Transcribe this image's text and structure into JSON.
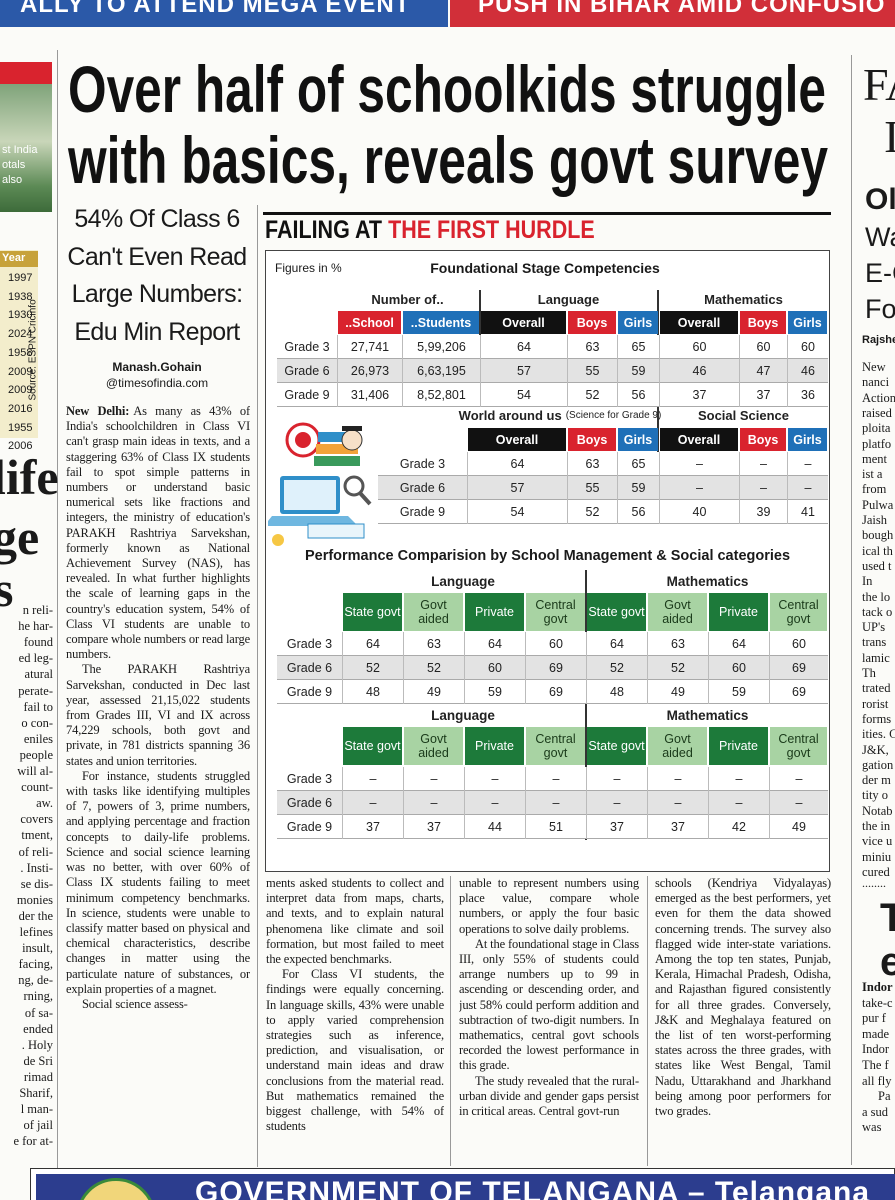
{
  "banner": {
    "left": "ALLY TO ATTEND MEGA EVENT",
    "right": "PUSH IN BIHAR AMID CONFUSIO"
  },
  "left_fragment": {
    "caption_lines": [
      "st India",
      "otals",
      "also"
    ],
    "year_header": "Year",
    "years": [
      "1997",
      "1938",
      "1930",
      "2024",
      "1958",
      "2009",
      "2009",
      "2016",
      "1955",
      "2006"
    ],
    "source": "Source: ESPN Cricinfo",
    "headline_lines": [
      "life",
      "ge",
      "s"
    ],
    "body_lines": [
      "n reli-",
      "he har-",
      "found",
      "ed leg-",
      "atural",
      "perate-",
      "fail to",
      "o con-",
      "eniles",
      "people",
      "will al-",
      "count-",
      "aw.",
      "covers",
      "tment,",
      "of reli-",
      ". Insti-",
      "se dis-",
      "monies",
      "der the",
      "lefines",
      "insult,",
      "facing,",
      "ng, de-",
      "rning,",
      "of sa-",
      "ended",
      ". Holy",
      "de Sri",
      "rimad",
      "Sharif,",
      "l man-",
      "of jail",
      "e for at-"
    ]
  },
  "right_fragment": {
    "headline_lines": [
      "FA",
      "I"
    ],
    "subhead_lines": [
      "Ol",
      "Wa",
      "E-C",
      "Fo"
    ],
    "byline": "Rajshe",
    "body_lines": [
      "New",
      "nanci",
      "Action",
      "raised",
      "ploita",
      "platfo",
      "ment",
      "ist a",
      "from",
      "Pulwa",
      "Jaish",
      "bough",
      "ical th",
      "used t",
      "In",
      "the lo",
      "tack o",
      "UP's",
      "trans",
      "lamic",
      "Th",
      "trated",
      "rorist",
      "forms",
      "ities. C",
      "J&K,",
      "gation",
      "der m",
      "tity o",
      "Notab",
      "the in",
      "vice u",
      "miniu",
      "cured"
    ],
    "divider": "........",
    "lower_headline_lines": [
      "T",
      "e"
    ],
    "lower_body_lines": [
      "Indor",
      "take-c",
      "pur f",
      "made",
      "Indor",
      "The f",
      "all fly",
      "Pa",
      "a sud",
      "was"
    ]
  },
  "article": {
    "headline_lines": [
      "Over half of schoolkids struggle",
      "with basics, reveals govt survey"
    ],
    "subhead_lines": [
      "54% Of Class 6",
      "Can't Even Read",
      "Large Numbers:",
      "Edu Min Report"
    ],
    "byline": {
      "author": "Manash.Gohain",
      "handle": "@timesofindia.com"
    },
    "dateline": "New Delhi:",
    "columns": [
      [
        "As many as 43% of India's schoolchildren in Class VI can't grasp main ideas in texts, and a staggering 63% of Class IX students fail to spot simple patterns in numbers or understand basic numerical sets like fractions and integers, the ministry of education's PARAKH Rashtriya Sarvekshan, formerly known as National Achievement Survey (NAS), has revealed. In what further highlights the scale of learning gaps in the country's education system, 54% of Class VI students are unable to compare whole numbers or read large numbers.",
        "The PARAKH Rashtriya Sarvekshan, conducted in Dec last year, assessed 21,15,022 students from Grades III, VI and IX across 74,229 schools, both govt and private, in 781 districts spanning 36 states and union territories.",
        "For instance, students struggled with tasks like identifying multiples of 7, powers of 3, prime numbers, and applying percentage and fraction concepts to daily-life problems. Science and social science learning was no better, with over 60% of Class IX students failing to meet minimum competency benchmarks. In science, students were unable to classify matter based on physical and chemical characteristics, describe changes in matter using the particulate nature of substances, or explain properties of a magnet.",
        "Social science assess-"
      ],
      [
        "ments asked students to collect and interpret data from maps, charts, and texts, and to explain natural phenomena like climate and soil formation, but most failed to meet the expected benchmarks.",
        "For Class VI students, the findings were equally concerning. In language skills, 43% were unable to apply varied comprehension strategies such as inference, prediction, and visualisation, or understand main ideas and draw conclusions from the material read. But mathematics remained the biggest challenge, with 54% of students"
      ],
      [
        "unable to represent numbers using place value, compare whole numbers, or apply the four basic operations to solve daily problems.",
        "At the foundational stage in Class III, only 55% of students could arrange numbers up to 99 in ascending or descending order, and just 58% could perform addition and subtraction of two-digit numbers. In mathematics, central govt schools recorded the lowest performance in this grade.",
        "The study revealed that the rural-urban divide and gender gaps persist in critical areas. Central govt-run"
      ],
      [
        "schools (Kendriya Vidyalayas) emerged as the best performers, yet even for them the data showed concerning trends. The survey also flagged wide inter-state variations. Among the top ten states, Punjab, Kerala, Himachal Pradesh, Odisha, and Rajasthan figured consistently for all three grades. Conversely, J&K and Meghalaya featured on the list of ten worst-performing states across the three grades, with states like West Bengal, Tamil Nadu, Uttarakhand and Jharkhand being among poor performers for two grades."
      ]
    ]
  },
  "infographic": {
    "title_part1": "FAILING AT",
    "title_part2": "THE FIRST HURDLE",
    "figures_note": "Figures in %",
    "table1": {
      "title": "Foundational Stage Competencies",
      "groups": [
        "Number of..",
        "Language",
        "Mathematics"
      ],
      "columns": [
        "..School",
        "..Students",
        "Overall",
        "Boys",
        "Girls",
        "Overall",
        "Boys",
        "Girls"
      ],
      "rows": [
        [
          "Grade 3",
          "27,741",
          "5,99,206",
          64,
          63,
          65,
          60,
          60,
          60
        ],
        [
          "Grade 6",
          "26,973",
          "6,63,195",
          57,
          55,
          59,
          46,
          47,
          46
        ],
        [
          "Grade 9",
          "31,406",
          "8,52,801",
          54,
          52,
          56,
          37,
          37,
          36
        ]
      ]
    },
    "table2": {
      "groups": [
        "World around us",
        "Social Science"
      ],
      "group_note": "(Science for Grade 9)",
      "columns": [
        "Overall",
        "Boys",
        "Girls",
        "Overall",
        "Boys",
        "Girls"
      ],
      "rows": [
        [
          "Grade 3",
          64,
          63,
          65,
          "–",
          "–",
          "–"
        ],
        [
          "Grade 6",
          57,
          55,
          59,
          "–",
          "–",
          "–"
        ],
        [
          "Grade 9",
          54,
          52,
          56,
          40,
          39,
          41
        ]
      ]
    },
    "table3": {
      "title": "Performance Comparision by School Management & Social categories",
      "blocks": [
        {
          "groups": [
            "Language",
            "Mathematics"
          ],
          "columns": [
            "State govt",
            "Govt aided",
            "Private",
            "Central govt",
            "State govt",
            "Govt aided",
            "Private",
            "Central govt"
          ],
          "rows": [
            [
              "Grade 3",
              64,
              63,
              64,
              60,
              64,
              63,
              64,
              60
            ],
            [
              "Grade 6",
              52,
              52,
              60,
              69,
              52,
              52,
              60,
              69
            ],
            [
              "Grade 9",
              48,
              49,
              59,
              69,
              48,
              49,
              59,
              69
            ]
          ]
        },
        {
          "groups": [
            "Language",
            "Mathematics"
          ],
          "columns": [
            "State govt",
            "Govt aided",
            "Private",
            "Central govt",
            "State govt",
            "Govt aided",
            "Private",
            "Central govt"
          ],
          "rows": [
            [
              "Grade 3",
              "–",
              "–",
              "–",
              "–",
              "–",
              "–",
              "–",
              "–"
            ],
            [
              "Grade 6",
              "–",
              "–",
              "–",
              "–",
              "–",
              "–",
              "–",
              "–"
            ],
            [
              "Grade 9",
              37,
              37,
              44,
              51,
              37,
              37,
              42,
              49
            ]
          ]
        }
      ]
    }
  },
  "footer_ad": {
    "text": "GOVERNMENT OF TELANGANA – Telangana"
  }
}
